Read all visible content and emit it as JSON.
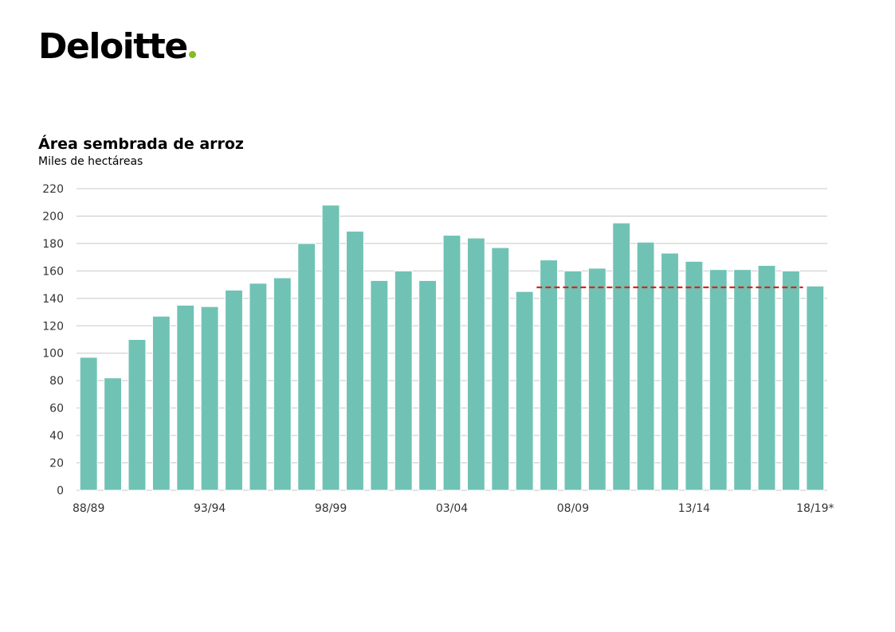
{
  "brand": {
    "name": "Deloitte",
    "dot_color": "#86BC25"
  },
  "chart_data": {
    "type": "bar",
    "title": "Área sembrada de arroz",
    "subtitle": "Miles de hectáreas",
    "ylim": [
      0,
      220
    ],
    "y_ticks": [
      0,
      20,
      40,
      60,
      80,
      100,
      120,
      140,
      160,
      180,
      200,
      220
    ],
    "x_tick_labels": [
      "88/89",
      "93/94",
      "98/99",
      "03/04",
      "08/09",
      "13/14",
      "18/19*"
    ],
    "categories": [
      "88/89",
      "89/90",
      "90/91",
      "91/92",
      "92/93",
      "93/94",
      "94/95",
      "95/96",
      "96/97",
      "97/98",
      "98/99",
      "99/00",
      "00/01",
      "01/02",
      "02/03",
      "03/04",
      "04/05",
      "05/06",
      "06/07",
      "07/08",
      "08/09",
      "09/10",
      "10/11",
      "11/12",
      "12/13",
      "13/14",
      "14/15",
      "15/16",
      "16/17",
      "17/18",
      "18/19*"
    ],
    "values": [
      97,
      82,
      110,
      127,
      135,
      134,
      146,
      151,
      155,
      180,
      208,
      189,
      153,
      160,
      153,
      186,
      184,
      177,
      145,
      168,
      160,
      162,
      195,
      181,
      173,
      167,
      161,
      161,
      164,
      160,
      149
    ],
    "reference_line": {
      "value": 148,
      "from": "07/08",
      "to": "17/18",
      "color": "#D7261E",
      "style": "dashed"
    },
    "bar_color": "#70C3B4",
    "grid": true,
    "grid_color": "#C8C8C8"
  }
}
